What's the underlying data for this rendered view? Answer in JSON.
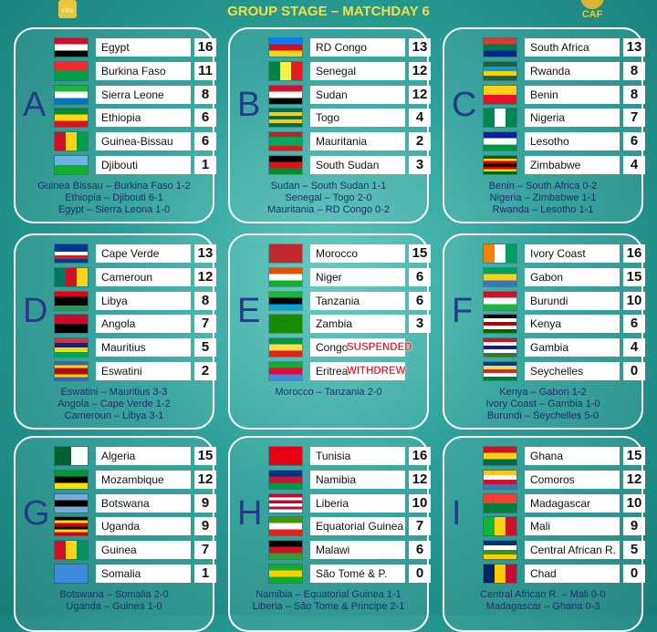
{
  "header": {
    "logo_left": "FIFA",
    "title": "GROUP STAGE – MATCHDAY 6",
    "logo_right": "CAF"
  },
  "groups": [
    {
      "letter": "A",
      "teams": [
        {
          "name": "Egypt",
          "points": 16
        },
        {
          "name": "Burkina Faso",
          "points": 11
        },
        {
          "name": "Sierra Leone",
          "points": 8
        },
        {
          "name": "Ethiopia",
          "points": 6
        },
        {
          "name": "Guinea-Bissau",
          "points": 6
        },
        {
          "name": "Djibouti",
          "points": 1
        }
      ],
      "results": [
        "Guinea Bissau – Burkina Faso 1-2",
        "Ethiopia – Djibouti 6-1",
        "Egypt – Sierra Leona 1-0"
      ]
    },
    {
      "letter": "B",
      "teams": [
        {
          "name": "RD Congo",
          "points": 13
        },
        {
          "name": "Senegal",
          "points": 12
        },
        {
          "name": "Sudan",
          "points": 12
        },
        {
          "name": "Togo",
          "points": 4
        },
        {
          "name": "Mauritania",
          "points": 2
        },
        {
          "name": "South Sudan",
          "points": 3
        }
      ],
      "results": [
        "Sudan – South Sudan 1-1",
        "Senegal – Togo 2-0",
        "Mauritania – RD Congo 0-2"
      ]
    },
    {
      "letter": "C",
      "teams": [
        {
          "name": "South Africa",
          "points": 13
        },
        {
          "name": "Rwanda",
          "points": 8
        },
        {
          "name": "Benin",
          "points": 8
        },
        {
          "name": "Nigeria",
          "points": 7
        },
        {
          "name": "Lesotho",
          "points": 6
        },
        {
          "name": "Zimbabwe",
          "points": 4
        }
      ],
      "results": [
        "Benin – South Africa 0-2",
        "Nigeria – Zimbabwe 1-1",
        "Rwanda – Lesotho 1-1"
      ]
    },
    {
      "letter": "D",
      "teams": [
        {
          "name": "Cape Verde",
          "points": 13
        },
        {
          "name": "Cameroun",
          "points": 12
        },
        {
          "name": "Libya",
          "points": 8
        },
        {
          "name": "Angola",
          "points": 7
        },
        {
          "name": "Mauritius",
          "points": 5
        },
        {
          "name": "Eswatini",
          "points": 2
        }
      ],
      "results": [
        "Eswatini – Mauritius 3-3",
        "Angola – Cape Verde 1-2",
        "Cameroun – Libya 3-1"
      ]
    },
    {
      "letter": "E",
      "teams": [
        {
          "name": "Morocco",
          "points": 15
        },
        {
          "name": "Niger",
          "points": 6
        },
        {
          "name": "Tanzania",
          "points": 6
        },
        {
          "name": "Zambia",
          "points": 3
        },
        {
          "name": "Congo",
          "status": "SUSPENDED"
        },
        {
          "name": "Eritrea",
          "status": "WITHDREW"
        }
      ],
      "results": [
        "Morocco – Tanzania 2-0"
      ]
    },
    {
      "letter": "F",
      "teams": [
        {
          "name": "Ivory Coast",
          "points": 16
        },
        {
          "name": "Gabon",
          "points": 15
        },
        {
          "name": "Burundi",
          "points": 10
        },
        {
          "name": "Kenya",
          "points": 6
        },
        {
          "name": "Gambia",
          "points": 4
        },
        {
          "name": "Seychelles",
          "points": 0
        }
      ],
      "results": [
        "Kenya – Gabon 1-2",
        "Ivory Coast – Gambia 1-0",
        "Burundi – Seychelles 5-0"
      ]
    },
    {
      "letter": "G",
      "teams": [
        {
          "name": "Algeria",
          "points": 15
        },
        {
          "name": "Mozambique",
          "points": 12
        },
        {
          "name": "Botswana",
          "points": 9
        },
        {
          "name": "Uganda",
          "points": 9
        },
        {
          "name": "Guinea",
          "points": 7
        },
        {
          "name": "Somalia",
          "points": 1
        }
      ],
      "results": [
        "Botswana – Somalia 2-0",
        "Uganda – Guinea 1-0"
      ]
    },
    {
      "letter": "H",
      "teams": [
        {
          "name": "Tunisia",
          "points": 16
        },
        {
          "name": "Namibia",
          "points": 12
        },
        {
          "name": "Liberia",
          "points": 10
        },
        {
          "name": "Equatorial Guinea",
          "points": 7
        },
        {
          "name": "Malawi",
          "points": 6
        },
        {
          "name": "São Tomé & P.",
          "points": 0
        }
      ],
      "results": [
        "Namibia – Equatorial Guinea 1-1",
        "Liberia – São Tome & Principe 2-1"
      ]
    },
    {
      "letter": "I",
      "teams": [
        {
          "name": "Ghana",
          "points": 15
        },
        {
          "name": "Comoros",
          "points": 12
        },
        {
          "name": "Madagascar",
          "points": 10
        },
        {
          "name": "Mali",
          "points": 9
        },
        {
          "name": "Central African R.",
          "points": 5
        },
        {
          "name": "Chad",
          "points": 0
        }
      ],
      "results": [
        "Central African R. – Mali 0-0",
        "Madagascar – Ghana 0-3"
      ]
    }
  ]
}
